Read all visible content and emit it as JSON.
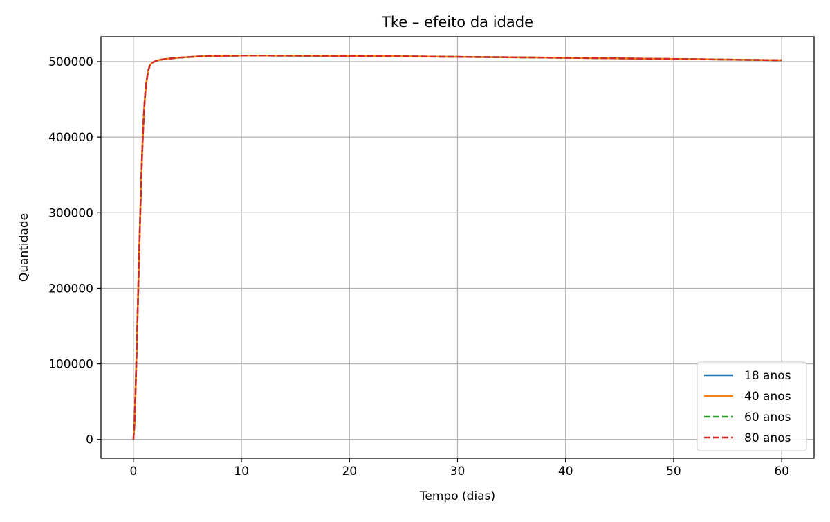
{
  "chart_data": {
    "type": "line",
    "title": "Tke – efeito da idade",
    "xlabel": "Tempo (dias)",
    "ylabel": "Quantidade",
    "xlim": [
      -3,
      63
    ],
    "ylim": [
      -25000,
      533000
    ],
    "xticks": [
      0,
      10,
      20,
      30,
      40,
      50,
      60
    ],
    "yticks": [
      0,
      100000,
      200000,
      300000,
      400000,
      500000
    ],
    "grid": true,
    "legend_position": "lower right",
    "x": [
      0,
      0.1,
      0.2,
      0.3,
      0.4,
      0.5,
      0.6,
      0.7,
      0.8,
      0.9,
      1.0,
      1.1,
      1.2,
      1.3,
      1.4,
      1.5,
      1.6,
      1.7,
      1.8,
      2.0,
      2.2,
      2.5,
      3,
      4,
      5,
      6,
      8,
      10,
      12,
      15,
      20,
      25,
      30,
      35,
      40,
      45,
      50,
      55,
      60
    ],
    "series": [
      {
        "name": "18 anos",
        "color": "#1f77b4",
        "dash": "solid",
        "values": [
          0,
          20000,
          65000,
          115000,
          170000,
          225000,
          280000,
          330000,
          375000,
          410000,
          438000,
          458000,
          472000,
          482000,
          489000,
          494000,
          496500,
          498000,
          499000,
          500500,
          501500,
          502500,
          503500,
          505000,
          506000,
          506800,
          507500,
          508000,
          508000,
          507900,
          507500,
          507000,
          506300,
          505700,
          505000,
          504300,
          503500,
          502700,
          501800
        ]
      },
      {
        "name": "40 anos",
        "color": "#ff7f0e",
        "dash": "solid",
        "values": [
          0,
          20000,
          65000,
          115000,
          170000,
          225000,
          280000,
          330000,
          375000,
          410000,
          438000,
          458000,
          472000,
          482000,
          489000,
          494000,
          496500,
          498000,
          499000,
          500500,
          501500,
          502500,
          503500,
          505000,
          506000,
          506800,
          507500,
          508000,
          508000,
          507900,
          507500,
          507000,
          506300,
          505700,
          505000,
          504300,
          503500,
          502700,
          501800
        ]
      },
      {
        "name": "60 anos",
        "color": "#2ca02c",
        "dash": "dashed",
        "values": [
          0,
          20000,
          65000,
          115000,
          170000,
          225000,
          280000,
          330000,
          375000,
          410000,
          438000,
          458000,
          472000,
          482000,
          489000,
          494000,
          496500,
          498000,
          499000,
          500500,
          501500,
          502500,
          503500,
          505000,
          506000,
          506800,
          507500,
          508000,
          508000,
          507900,
          507500,
          507000,
          506300,
          505700,
          505000,
          504300,
          503500,
          502700,
          501800
        ]
      },
      {
        "name": "80 anos",
        "color": "#d62728",
        "dash": "dashed",
        "values": [
          0,
          20000,
          65000,
          115000,
          170000,
          225000,
          280000,
          330000,
          375000,
          410000,
          438000,
          458000,
          472000,
          482000,
          489000,
          494000,
          496500,
          498000,
          499000,
          500500,
          501500,
          502500,
          503500,
          505000,
          506000,
          506800,
          507500,
          508000,
          508000,
          507900,
          507500,
          507000,
          506300,
          505700,
          505000,
          504300,
          503500,
          502700,
          501800
        ]
      }
    ]
  }
}
